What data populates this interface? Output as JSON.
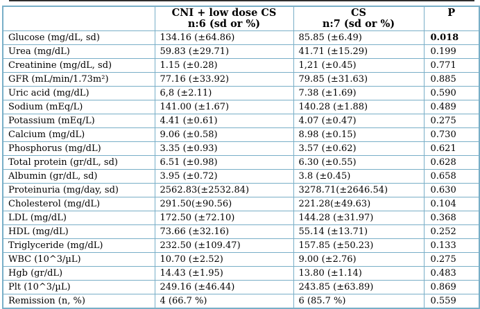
{
  "colors": {
    "table_border": "#78aec7",
    "top_rule": "#2e2e2e",
    "text": "#000000",
    "background": "#ffffff"
  },
  "table": {
    "header": {
      "parameter": "",
      "group1": {
        "line1": "CNI + low dose CS",
        "line2": "n:6 (sd or %)"
      },
      "group2": {
        "line1": "CS",
        "line2": "n:7 (sd or %)"
      },
      "p": "P"
    },
    "rows": [
      {
        "parameter": "Glucose (mg/dL, sd)",
        "group1": "134.16 (±64.86)",
        "group2": "85.85 (±6.49)",
        "p": "0.018",
        "p_bold": true
      },
      {
        "parameter": "Urea (mg/dL)",
        "group1": "59.83 (±29.71)",
        "group2": "41.71 (±15.29)",
        "p": "0.199",
        "p_bold": false
      },
      {
        "parameter": "Creatinine (mg/dL, sd)",
        "group1": "1.15 (±0.28)",
        "group2": "1,21 (±0.45)",
        "p": "0.771",
        "p_bold": false
      },
      {
        "parameter": "GFR (mL/min/1.73m²)",
        "group1": "77.16 (±33.92)",
        "group2": "79.85 (±31.63)",
        "p": "0.885",
        "p_bold": false
      },
      {
        "parameter": "Uric acid (mg/dL)",
        "group1": "6,8 (±2.11)",
        "group2": "7.38 (±1.69)",
        "p": "0.590",
        "p_bold": false
      },
      {
        "parameter": "Sodium (mEq/L)",
        "group1": "141.00 (±1.67)",
        "group2": "140.28 (±1.88)",
        "p": "0.489",
        "p_bold": false
      },
      {
        "parameter": "Potassium  (mEq/L)",
        "group1": "4.41 (±0.61)",
        "group2": "4.07 (±0.47)",
        "p": "0.275",
        "p_bold": false
      },
      {
        "parameter": "Calcium (mg/dL)",
        "group1": "9.06 (±0.58)",
        "group2": "8.98 (±0.15)",
        "p": "0.730",
        "p_bold": false
      },
      {
        "parameter": "Phosphorus (mg/dL)",
        "group1": "3.35 (±0.93)",
        "group2": "3.57 (±0.62)",
        "p": "0.621",
        "p_bold": false
      },
      {
        "parameter": "Total protein (gr/dL, sd)",
        "group1": "6.51 (±0.98)",
        "group2": "6.30 (±0.55)",
        "p": "0.628",
        "p_bold": false
      },
      {
        "parameter": "Albumin (gr/dL, sd)",
        "group1": "3.95 (±0.72)",
        "group2": "3.8 (±0.45)",
        "p": "0.658",
        "p_bold": false
      },
      {
        "parameter": "Proteinuria (mg/day, sd)",
        "group1": "2562.83(±2532.84)",
        "group2": "3278.71(±2646.54)",
        "p": "0.630",
        "p_bold": false
      },
      {
        "parameter": "Cholesterol (mg/dL)",
        "group1": "291.50(±90.56)",
        "group2": "221.28(±49.63)",
        "p": "0.104",
        "p_bold": false
      },
      {
        "parameter": "LDL (mg/dL)",
        "group1": "172.50 (±72.10)",
        "group2": "144.28 (±31.97)",
        "p": "0.368",
        "p_bold": false
      },
      {
        "parameter": "HDL (mg/dL)",
        "group1": "73.66 (±32.16)",
        "group2": "55.14 (±13.71)",
        "p": "0.252",
        "p_bold": false
      },
      {
        "parameter": "Triglyceride (mg/dL)",
        "group1": "232.50 (±109.47)",
        "group2": "157.85 (±50.23)",
        "p": "0.133",
        "p_bold": false
      },
      {
        "parameter": "WBC (10^3/µL)",
        "group1": "10.70 (±2.52)",
        "group2": "9.00 (±2.76)",
        "p": "0.275",
        "p_bold": false
      },
      {
        "parameter": "Hgb (gr/dL)",
        "group1": "14.43 (±1.95)",
        "group2": "13.80 (±1.14)",
        "p": "0.483",
        "p_bold": false
      },
      {
        "parameter": "Plt (10^3/µL)",
        "group1": "249.16 (±46.44)",
        "group2": "243.85 (±63.89)",
        "p": "0.869",
        "p_bold": false
      },
      {
        "parameter": "Remission (n, %)",
        "group1": "4 (66.7 %)",
        "group2": "6 (85.7 %)",
        "p": "0.559",
        "p_bold": false
      }
    ]
  }
}
